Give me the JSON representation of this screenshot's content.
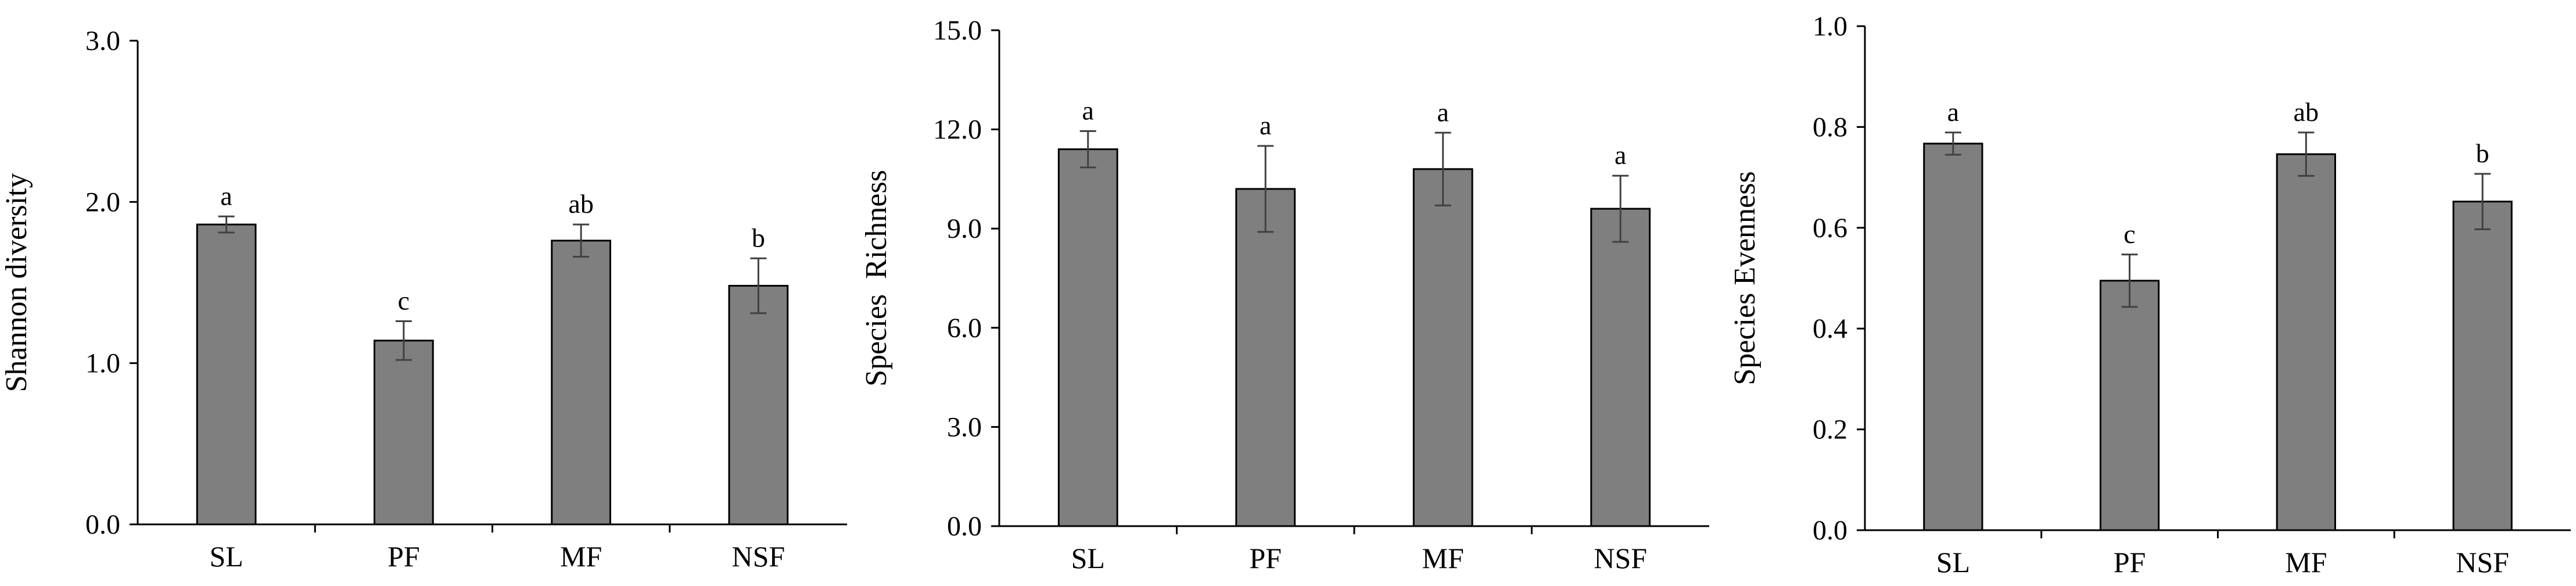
{
  "chart_data": [
    {
      "type": "bar",
      "categories": [
        "SL",
        "PF",
        "MF",
        "NSF"
      ],
      "values": [
        1.86,
        1.14,
        1.76,
        1.48
      ],
      "errors": [
        0.05,
        0.12,
        0.1,
        0.17
      ],
      "significance_letters": [
        "a",
        "c",
        "ab",
        "b"
      ],
      "ylabel": "Shannon diversity",
      "xlabel": "",
      "ylim": [
        0,
        3.0
      ],
      "yticks": [
        "0.0",
        "1.0",
        "2.0",
        "3.0"
      ],
      "grid": false,
      "legend": "none"
    },
    {
      "type": "bar",
      "categories": [
        "SL",
        "PF",
        "MF",
        "NSF"
      ],
      "values": [
        11.4,
        10.2,
        10.8,
        9.6
      ],
      "errors": [
        0.55,
        1.3,
        1.1,
        1.0
      ],
      "significance_letters": [
        "a",
        "a",
        "a",
        "a"
      ],
      "ylabel": "Species  Richness",
      "xlabel": "",
      "ylim": [
        0,
        15.0
      ],
      "yticks": [
        "0.0",
        "3.0",
        "6.0",
        "9.0",
        "12.0",
        "15.0"
      ],
      "grid": false,
      "legend": "none"
    },
    {
      "type": "bar",
      "categories": [
        "SL",
        "PF",
        "MF",
        "NSF"
      ],
      "values": [
        0.767,
        0.495,
        0.746,
        0.652
      ],
      "errors": [
        0.022,
        0.052,
        0.043,
        0.055
      ],
      "significance_letters": [
        "a",
        "c",
        "ab",
        "b"
      ],
      "ylabel": "Species Evenness",
      "xlabel": "",
      "ylim": [
        0,
        1.0
      ],
      "yticks": [
        "0.0",
        "0.2",
        "0.4",
        "0.6",
        "0.8",
        "1.0"
      ],
      "grid": false,
      "legend": "none"
    }
  ],
  "colors": {
    "bar_fill": "#7f7f7f",
    "bar_stroke": "#000000",
    "error_bar": "#404040",
    "axis": "#000000"
  }
}
